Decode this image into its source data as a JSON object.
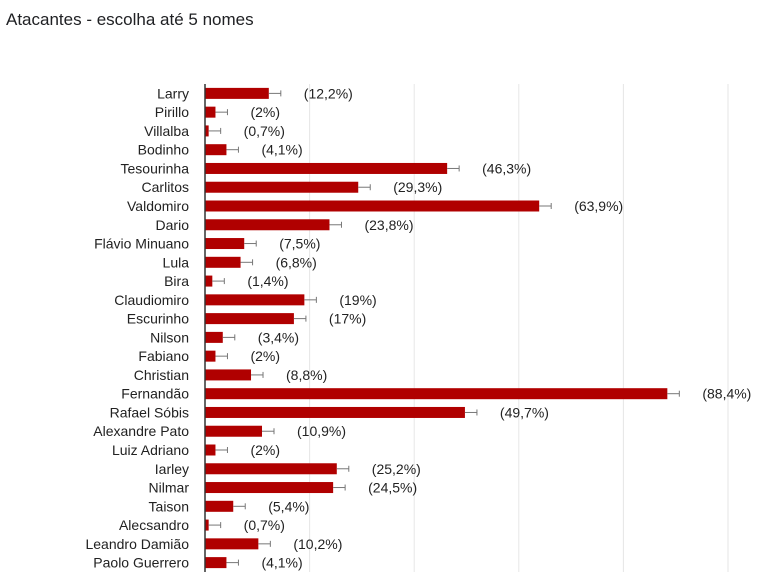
{
  "chart_data": {
    "type": "bar",
    "orientation": "horizontal",
    "title": "Atacantes - escolha até 5 nomes",
    "xlim": [
      0,
      100
    ],
    "grid": true,
    "bar_color": "#b00000",
    "categories": [
      "Larry",
      "Pirillo",
      "Villalba",
      "Bodinho",
      "Tesourinha",
      "Carlitos",
      "Valdomiro",
      "Dario",
      "Flávio Minuano",
      "Lula",
      "Bira",
      "Claudiomiro",
      "Escurinho",
      "Nilson",
      "Fabiano",
      "Christian",
      "Fernandão",
      "Rafael Sóbis",
      "Alexandre Pato",
      "Luiz Adriano",
      "Iarley",
      "Nilmar",
      "Taison",
      "Alecsandro",
      "Leandro Damião",
      "Paolo Guerrero"
    ],
    "values": [
      12.2,
      2,
      0.7,
      4.1,
      46.3,
      29.3,
      63.9,
      23.8,
      7.5,
      6.8,
      1.4,
      19,
      17,
      3.4,
      2,
      8.8,
      88.4,
      49.7,
      10.9,
      2,
      25.2,
      24.5,
      5.4,
      0.7,
      10.2,
      4.1
    ],
    "value_labels": [
      "(12,2%)",
      "(2%)",
      "(0,7%)",
      "(4,1%)",
      "(46,3%)",
      "(29,3%)",
      "(63,9%)",
      "(23,8%)",
      "(7,5%)",
      "(6,8%)",
      "(1,4%)",
      "(19%)",
      "(17%)",
      "(3,4%)",
      "(2%)",
      "(8,8%)",
      "(88,4%)",
      "(49,7%)",
      "(10,9%)",
      "(2%)",
      "(25,2%)",
      "(24,5%)",
      "(5,4%)",
      "(0,7%)",
      "(10,2%)",
      "(4,1%)"
    ]
  }
}
